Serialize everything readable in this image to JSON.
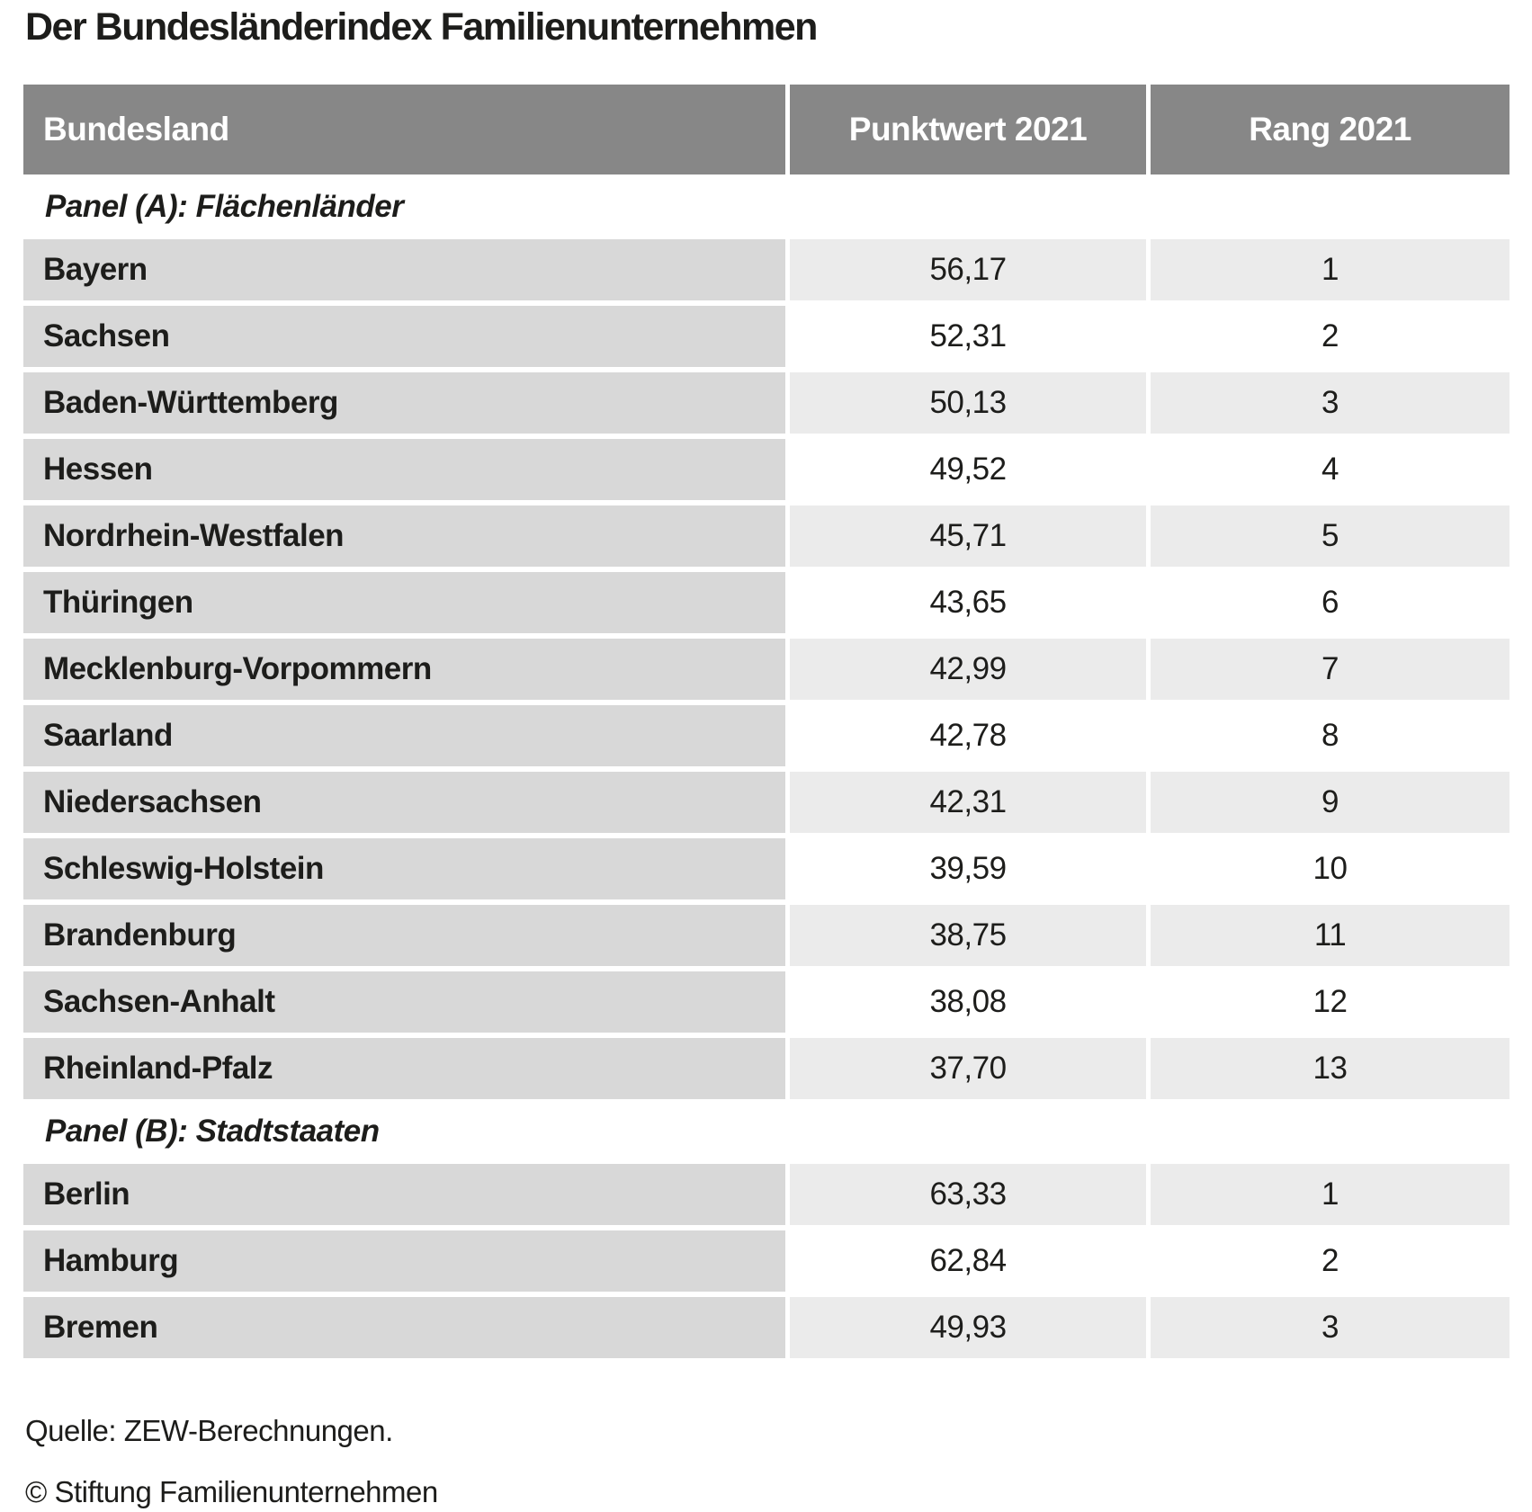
{
  "title": "Der Bundesländerindex Familienunternehmen",
  "colors": {
    "header_bg": "#878787",
    "header_text": "#ffffff",
    "row_label_bg": "#d8d8d8",
    "row_alt_bg": "#ebebeb",
    "row_plain_bg": "#ffffff",
    "text": "#1d1d1b"
  },
  "footer": {
    "source": "Quelle: ZEW-Berechnungen.",
    "copyright": "© Stiftung Familienunternehmen"
  },
  "chart_data": {
    "type": "table",
    "title": "Der Bundesländerindex Familienunternehmen",
    "columns": [
      "Bundesland",
      "Punktwert 2021",
      "Rang 2021"
    ],
    "panels": [
      {
        "label": "Panel (A): Flächenländer",
        "rows": [
          [
            "Bayern",
            "56,17",
            "1"
          ],
          [
            "Sachsen",
            "52,31",
            "2"
          ],
          [
            "Baden-Württemberg",
            "50,13",
            "3"
          ],
          [
            "Hessen",
            "49,52",
            "4"
          ],
          [
            "Nordrhein-Westfalen",
            "45,71",
            "5"
          ],
          [
            "Thüringen",
            "43,65",
            "6"
          ],
          [
            "Mecklenburg-Vorpommern",
            "42,99",
            "7"
          ],
          [
            "Saarland",
            "42,78",
            "8"
          ],
          [
            "Niedersachsen",
            "42,31",
            "9"
          ],
          [
            "Schleswig-Holstein",
            "39,59",
            "10"
          ],
          [
            "Brandenburg",
            "38,75",
            "11"
          ],
          [
            "Sachsen-Anhalt",
            "38,08",
            "12"
          ],
          [
            "Rheinland-Pfalz",
            "37,70",
            "13"
          ]
        ]
      },
      {
        "label": "Panel (B): Stadtstaaten",
        "rows": [
          [
            "Berlin",
            "63,33",
            "1"
          ],
          [
            "Hamburg",
            "62,84",
            "2"
          ],
          [
            "Bremen",
            "49,93",
            "3"
          ]
        ]
      }
    ],
    "source": "Quelle: ZEW-Berechnungen.",
    "copyright": "© Stiftung Familienunternehmen"
  }
}
